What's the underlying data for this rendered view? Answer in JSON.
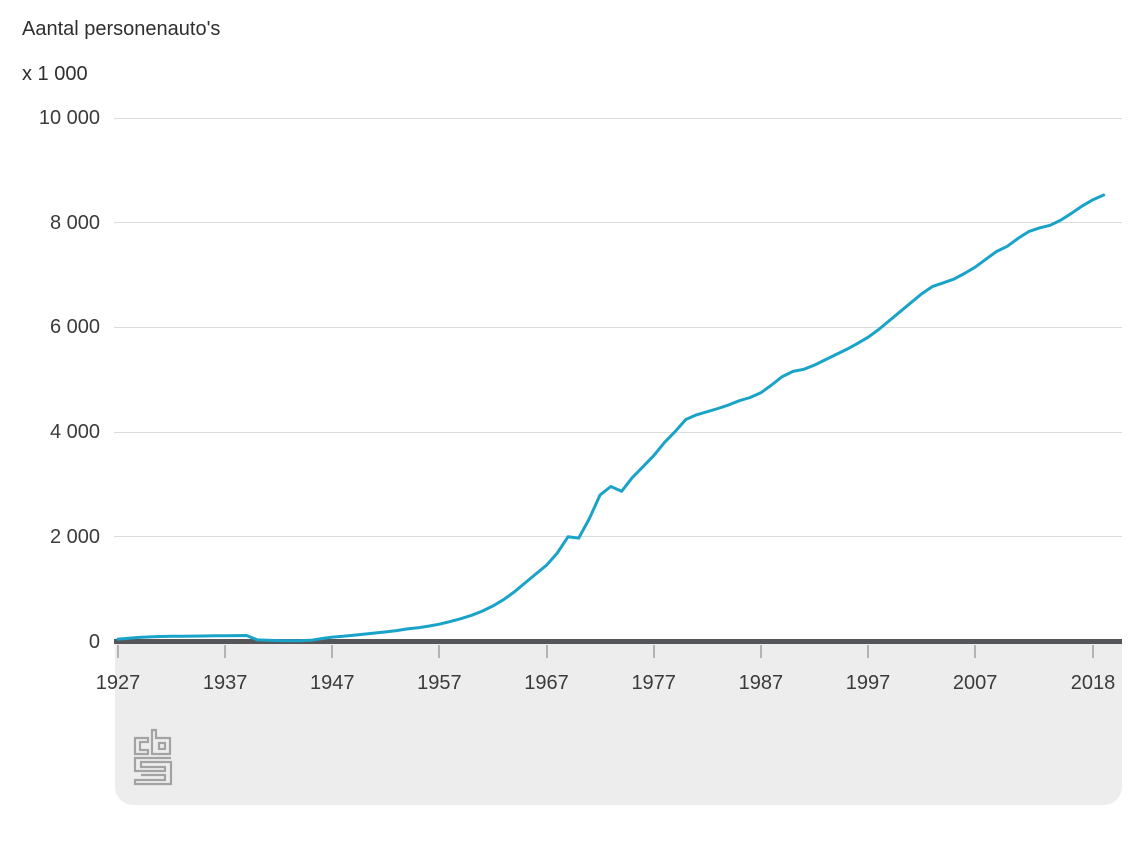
{
  "header": {
    "title": "Aantal personenauto's",
    "unit_label": "x 1 000"
  },
  "colors": {
    "line": "#1aa3c9",
    "axis_line": "#55565a",
    "gridline": "#dcdcdc",
    "band_background": "#ededed",
    "tick": "#b3b3b3",
    "text": "#3b3b3b",
    "logo": "#a3a3a3"
  },
  "logo": {
    "name": "cbs-logo"
  },
  "chart_data": {
    "type": "line",
    "title": "Aantal personenauto's",
    "ylabel": "Aantal personenauto's x 1 000",
    "xlabel": "",
    "grid": "horizontal",
    "legend": "none",
    "ylim": [
      0,
      10000
    ],
    "xlim": [
      1927,
      2019
    ],
    "y_ticks": [
      "10 000",
      "8 000",
      "6 000",
      "4 000",
      "2 000",
      "0"
    ],
    "y_tick_values": [
      10000,
      8000,
      6000,
      4000,
      2000,
      0
    ],
    "x_ticks": [
      "1927",
      "1937",
      "1947",
      "1957",
      "1967",
      "1977",
      "1987",
      "1997",
      "2007",
      "2018"
    ],
    "x_tick_values": [
      1927,
      1937,
      1947,
      1957,
      1967,
      1977,
      1987,
      1997,
      2007,
      2018
    ],
    "x": [
      1927,
      1928,
      1929,
      1930,
      1931,
      1932,
      1933,
      1934,
      1935,
      1936,
      1937,
      1938,
      1939,
      1940,
      1941,
      1942,
      1943,
      1944,
      1945,
      1946,
      1947,
      1948,
      1949,
      1950,
      1951,
      1952,
      1953,
      1954,
      1955,
      1956,
      1957,
      1958,
      1959,
      1960,
      1961,
      1962,
      1963,
      1964,
      1965,
      1966,
      1967,
      1968,
      1969,
      1970,
      1971,
      1972,
      1973,
      1974,
      1975,
      1976,
      1977,
      1978,
      1979,
      1980,
      1981,
      1982,
      1983,
      1984,
      1985,
      1986,
      1987,
      1988,
      1989,
      1990,
      1991,
      1992,
      1993,
      1994,
      1995,
      1996,
      1997,
      1998,
      1999,
      2000,
      2001,
      2002,
      2003,
      2004,
      2005,
      2006,
      2007,
      2008,
      2009,
      2010,
      2011,
      2012,
      2013,
      2014,
      2015,
      2016,
      2017,
      2018,
      2019
    ],
    "series": [
      {
        "name": "Aantal personenauto's (x 1 000)",
        "values": [
          45,
          62,
          78,
          88,
          95,
          99,
          102,
          104,
          106,
          108,
          110,
          112,
          115,
          30,
          22,
          18,
          15,
          15,
          22,
          55,
          85,
          100,
          120,
          142,
          162,
          183,
          208,
          240,
          262,
          295,
          330,
          380,
          435,
          500,
          580,
          680,
          800,
          950,
          1120,
          1290,
          1460,
          1690,
          2000,
          1975,
          2350,
          2800,
          2960,
          2870,
          3130,
          3340,
          3550,
          3800,
          4010,
          4240,
          4330,
          4390,
          4450,
          4520,
          4600,
          4660,
          4750,
          4900,
          5060,
          5160,
          5200,
          5280,
          5380,
          5480,
          5580,
          5690,
          5810,
          5960,
          6130,
          6300,
          6470,
          6640,
          6780,
          6850,
          6920,
          7030,
          7150,
          7300,
          7450,
          7550,
          7700,
          7830,
          7900,
          7950,
          8050,
          8180,
          8320,
          8440,
          8530
        ]
      }
    ]
  }
}
